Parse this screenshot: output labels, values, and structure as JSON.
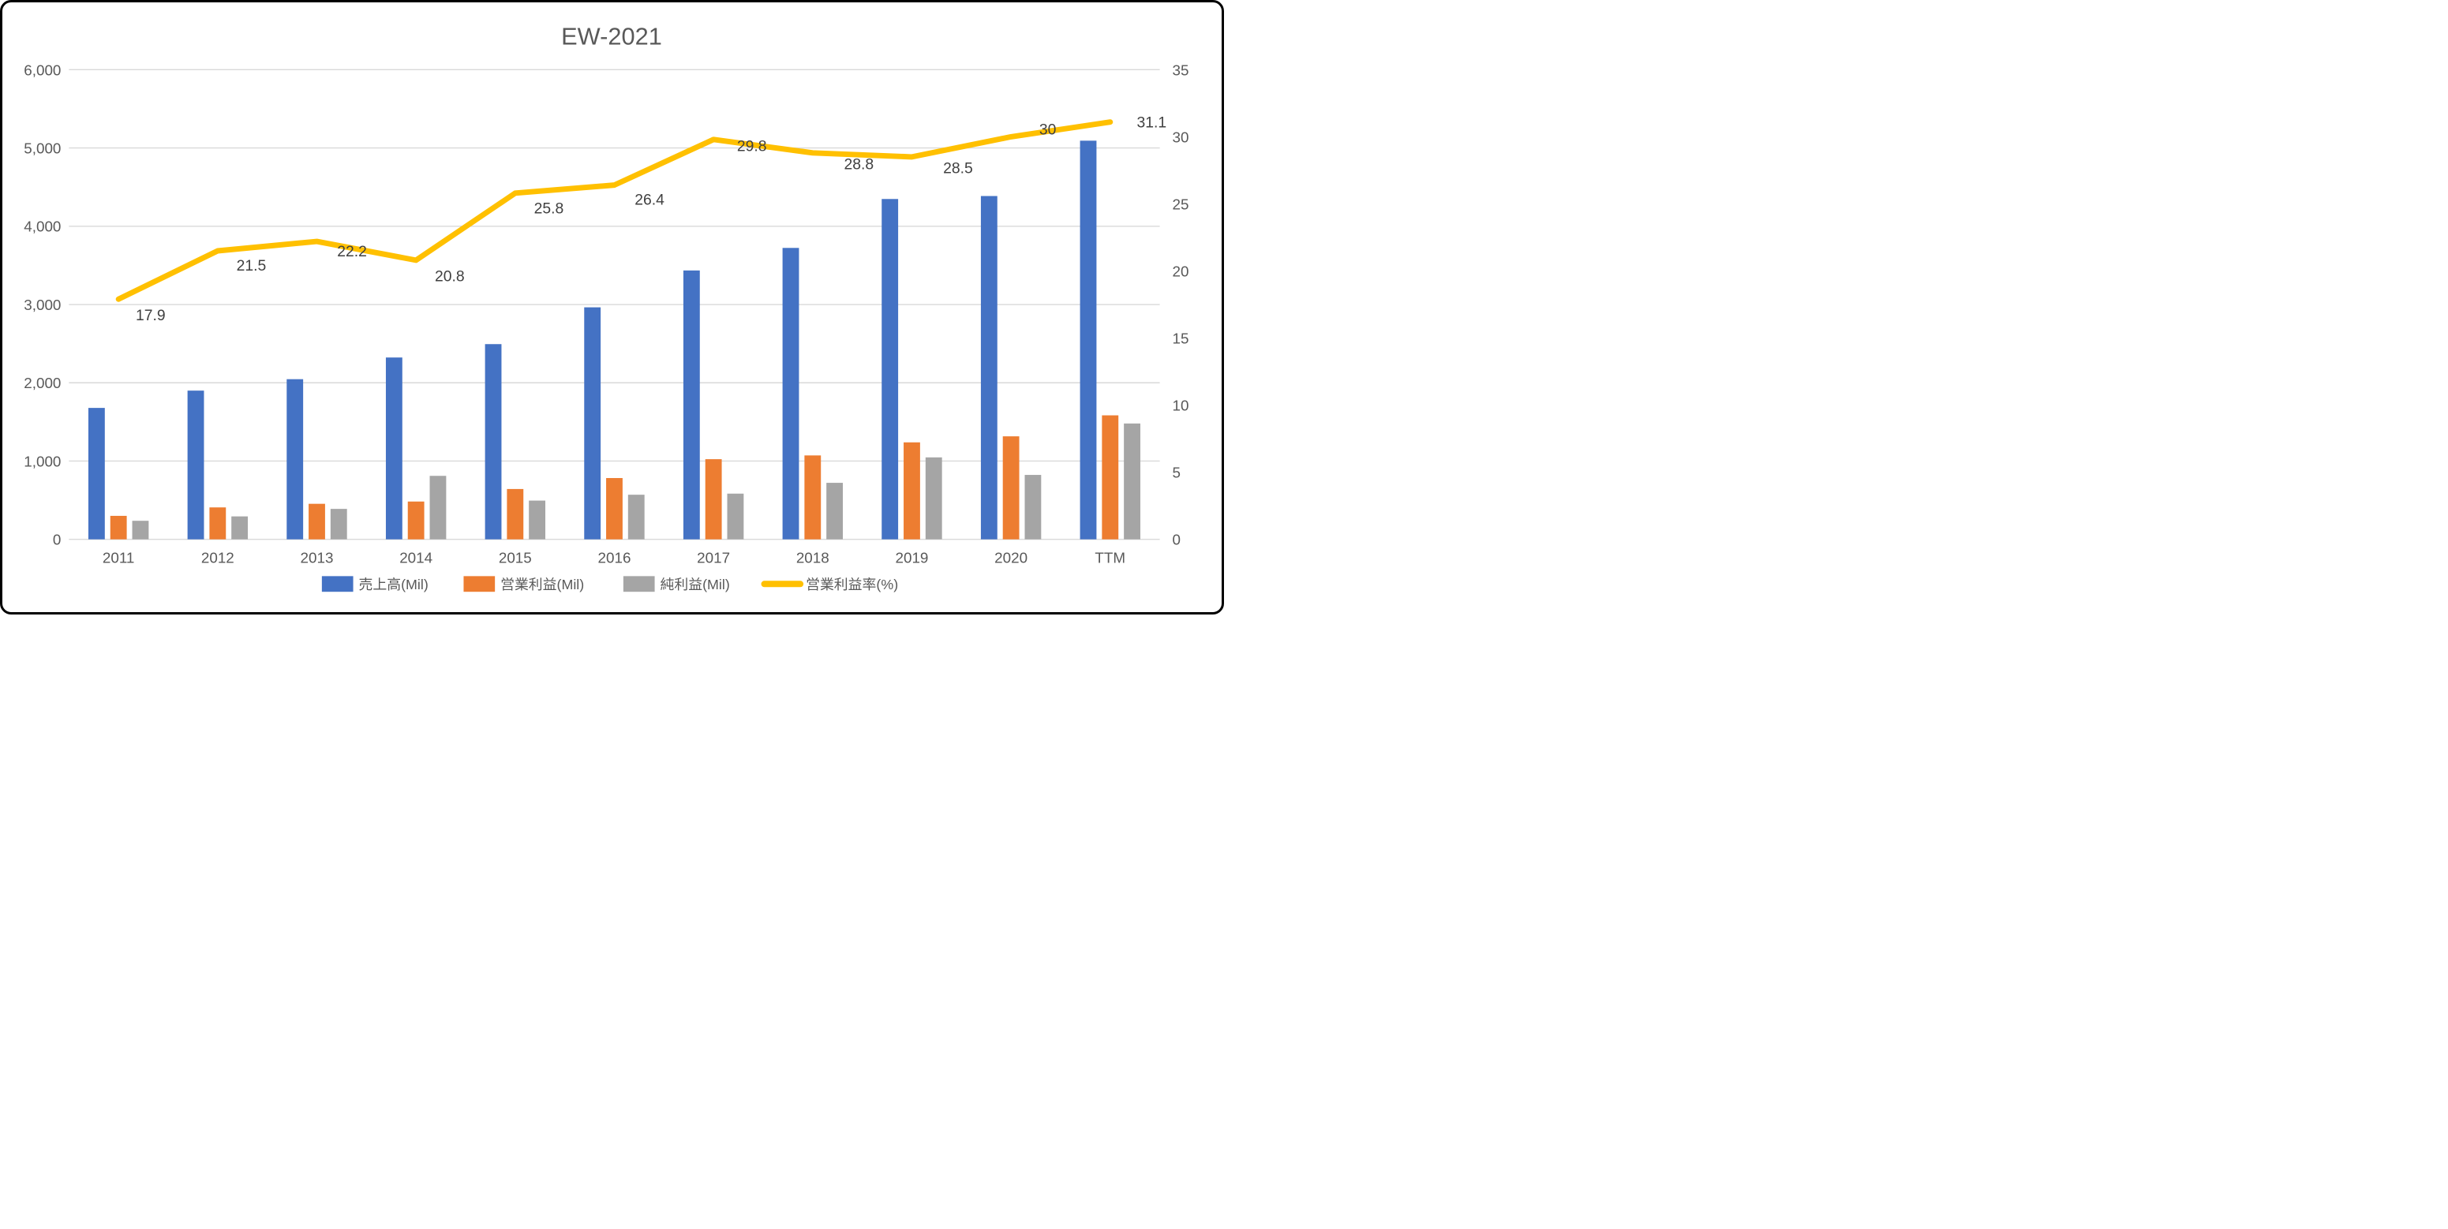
{
  "chart_data": {
    "type": "bar",
    "title": "EW-2021",
    "categories": [
      "2011",
      "2012",
      "2013",
      "2014",
      "2015",
      "2016",
      "2017",
      "2018",
      "2019",
      "2020",
      "TTM"
    ],
    "series": [
      {
        "name": "売上高(Mil)",
        "kind": "bar",
        "color": "#4472C4",
        "axis": "left",
        "values": [
          1679,
          1900,
          2046,
          2323,
          2494,
          2964,
          3435,
          3723,
          4348,
          4386,
          5093
        ]
      },
      {
        "name": "営業利益(Mil)",
        "kind": "bar",
        "color": "#ED7D31",
        "axis": "left",
        "values": [
          300,
          408,
          454,
          483,
          643,
          783,
          1024,
          1072,
          1239,
          1316,
          1584
        ]
      },
      {
        "name": "純利益(Mil)",
        "kind": "bar",
        "color": "#A5A5A5",
        "axis": "left",
        "values": [
          237,
          293,
          389,
          811,
          495,
          570,
          584,
          722,
          1047,
          823,
          1480
        ]
      },
      {
        "name": "営業利益率(%)",
        "kind": "line",
        "color": "#FFC000",
        "axis": "right",
        "values": [
          17.9,
          21.5,
          22.2,
          20.8,
          25.8,
          26.4,
          29.8,
          28.8,
          28.5,
          30,
          31.1
        ],
        "point_labels": [
          "17.9",
          "21.5",
          "22.2",
          "20.8",
          "25.8",
          "26.4",
          "29.8",
          "28.8",
          "28.5",
          "30",
          "31.1"
        ]
      }
    ],
    "left_axis": {
      "min": 0,
      "max": 6000,
      "step": 1000,
      "ticks": [
        "0",
        "1,000",
        "2,000",
        "3,000",
        "4,000",
        "5,000",
        "6,000"
      ]
    },
    "right_axis": {
      "min": 0,
      "max": 35,
      "step": 5,
      "ticks": [
        "0",
        "5",
        "10",
        "15",
        "20",
        "25",
        "30",
        "35"
      ]
    },
    "grid": true,
    "legend_position": "bottom",
    "colors": {
      "grid": "#D9D9D9",
      "axis_text": "#595959",
      "title_text": "#595959",
      "data_label_text": "#404040"
    }
  }
}
